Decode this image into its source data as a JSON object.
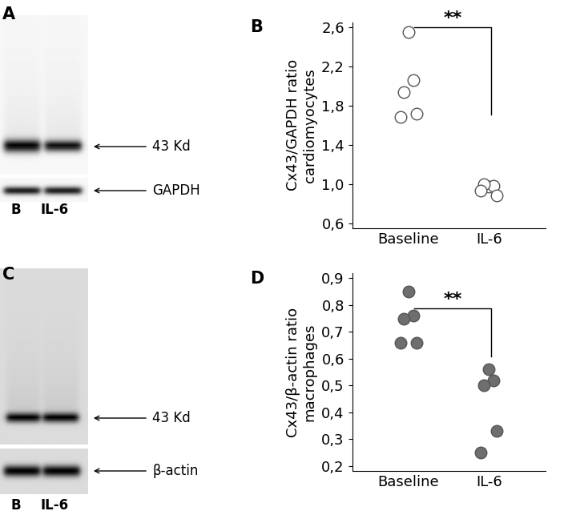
{
  "chart_data": [
    {
      "type": "scatter",
      "panel_label": "B",
      "ylabel": "Cx43/GAPDH ratio\ncardiomyocytes",
      "categories": [
        "Baseline",
        "IL-6"
      ],
      "values": [
        [
          2.55,
          2.06,
          1.94,
          1.72,
          1.68
        ],
        [
          0.97,
          0.98,
          1.0,
          0.88,
          0.93
        ]
      ],
      "color": "#ffffff",
      "marker": "o",
      "annotation": "**",
      "ylim": [
        0.55,
        2.65
      ],
      "yticks": [
        {
          "value": 0.6,
          "label": "0,6"
        },
        {
          "value": 1.0,
          "label": "1,0"
        },
        {
          "value": 1.4,
          "label": "1,4"
        },
        {
          "value": 1.8,
          "label": "1,8"
        },
        {
          "value": 2.2,
          "label": "2,2"
        },
        {
          "value": 2.6,
          "label": "2,6"
        }
      ]
    },
    {
      "type": "scatter",
      "panel_label": "D",
      "ylabel": "Cx43/β-actin ratio\nmacrophages",
      "categories": [
        "Baseline",
        "IL-6"
      ],
      "values": [
        [
          0.85,
          0.76,
          0.75,
          0.66,
          0.66
        ],
        [
          0.56,
          0.52,
          0.5,
          0.33,
          0.25
        ]
      ],
      "color": "#6e6e6e",
      "marker": "o",
      "annotation": "**",
      "ylim": [
        0.18,
        0.92
      ],
      "yticks": [
        {
          "value": 0.2,
          "label": "0,2"
        },
        {
          "value": 0.3,
          "label": "0,3"
        },
        {
          "value": 0.4,
          "label": "0,4"
        },
        {
          "value": 0.5,
          "label": "0,5"
        },
        {
          "value": 0.6,
          "label": "0,6"
        },
        {
          "value": 0.7,
          "label": "0,7"
        },
        {
          "value": 0.8,
          "label": "0,8"
        },
        {
          "value": 0.9,
          "label": "0,9"
        }
      ]
    }
  ],
  "blots": [
    {
      "panel_label": "A",
      "band_labels": [
        "43 Kd",
        "GAPDH"
      ],
      "lanes": [
        "B",
        "IL-6"
      ]
    },
    {
      "panel_label": "C",
      "band_labels": [
        "43 Kd",
        "β-actin"
      ],
      "lanes": [
        "B",
        "IL-6"
      ]
    }
  ]
}
